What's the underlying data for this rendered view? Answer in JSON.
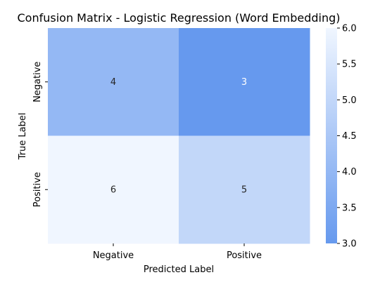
{
  "chart_data": {
    "type": "heatmap",
    "title": "Confusion Matrix - Logistic Regression (Word Embedding)",
    "xlabel": "Predicted Label",
    "ylabel": "True Label",
    "x_categories": [
      "Negative",
      "Positive"
    ],
    "y_categories": [
      "Negative",
      "Positive"
    ],
    "values": [
      [
        4,
        3
      ],
      [
        6,
        5
      ]
    ],
    "colorbar": {
      "min": 3.0,
      "max": 6.0,
      "ticks": [
        "3.0",
        "3.5",
        "4.0",
        "4.5",
        "5.0",
        "5.5",
        "6.0"
      ],
      "color_low": "#6699ee",
      "color_high": "#f0f6ff"
    },
    "annotation_dark_color": "#262626",
    "annotation_light_color": "#ffffff"
  }
}
